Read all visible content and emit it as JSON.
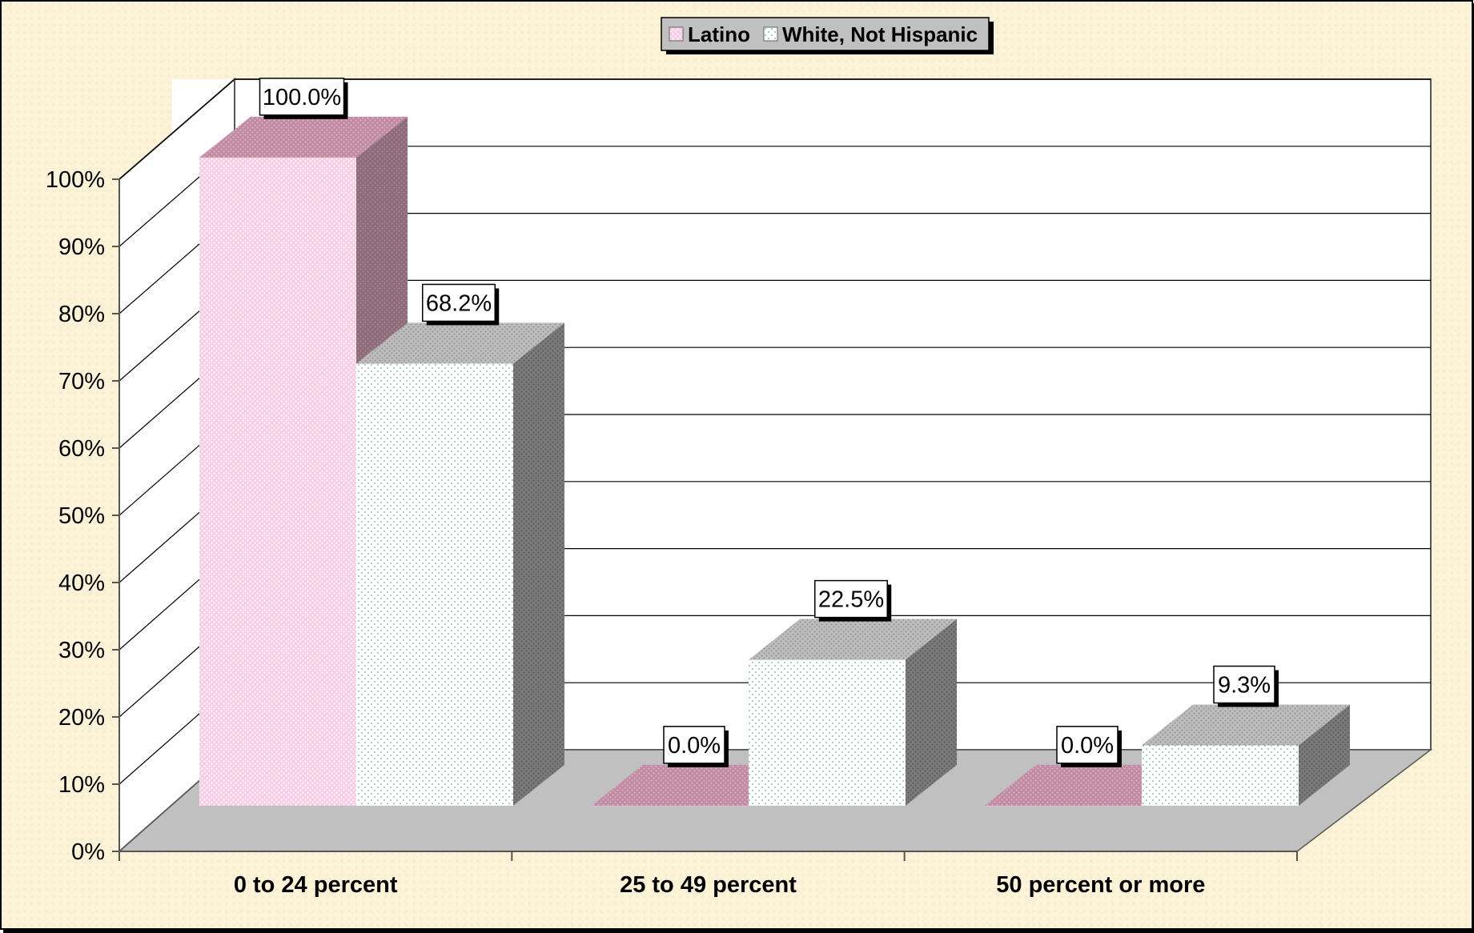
{
  "chart_data": {
    "type": "bar",
    "categories": [
      "0 to 24 percent",
      "25 to 49 percent",
      "50 percent or more"
    ],
    "series": [
      {
        "name": "Latino",
        "values": [
          100.0,
          0.0,
          0.0
        ],
        "color": "#f8c8e4",
        "pattern": "pink-dots"
      },
      {
        "name": "White, Not Hispanic",
        "values": [
          68.2,
          22.5,
          9.3
        ],
        "color": "#ffffff",
        "pattern": "green-dots"
      }
    ],
    "data_labels": [
      [
        "100.0%",
        "0.0%",
        "0.0%"
      ],
      [
        "68.2%",
        "22.5%",
        "9.3%"
      ]
    ],
    "y_ticks": [
      "0%",
      "10%",
      "20%",
      "30%",
      "40%",
      "50%",
      "60%",
      "70%",
      "80%",
      "90%",
      "100%"
    ],
    "ylim": [
      0,
      100
    ],
    "grid": true,
    "three_d": true,
    "legend_position": "top-center",
    "title": "",
    "xlabel": "",
    "ylabel": ""
  }
}
